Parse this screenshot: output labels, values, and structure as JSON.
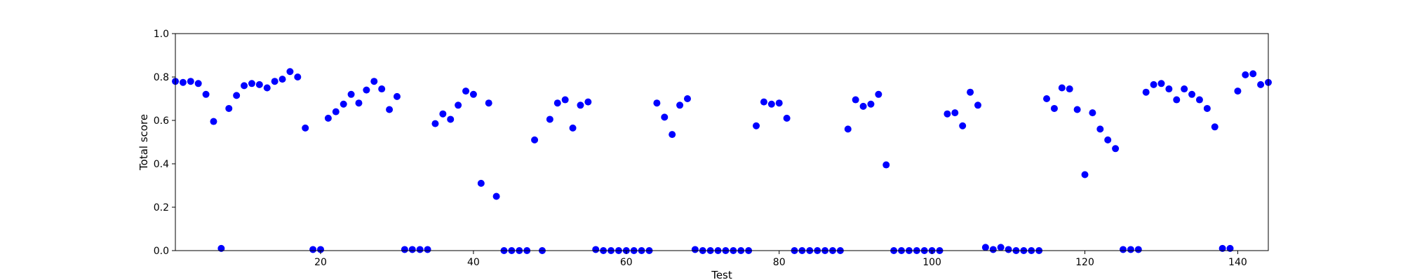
{
  "chart_data": {
    "type": "scatter",
    "title": "",
    "xlabel": "Test",
    "ylabel": "Total score",
    "xlim": [
      1,
      144
    ],
    "ylim": [
      0.0,
      1.0
    ],
    "x_ticks": [
      20,
      40,
      60,
      80,
      100,
      120,
      140
    ],
    "y_ticks": [
      0.0,
      0.2,
      0.4,
      0.6,
      0.8,
      1.0
    ],
    "y_tick_format": 1,
    "grid": false,
    "marker_color": "#0000ff",
    "x": [
      1,
      2,
      3,
      4,
      5,
      6,
      7,
      8,
      9,
      10,
      11,
      12,
      13,
      14,
      15,
      16,
      17,
      18,
      19,
      20,
      21,
      22,
      23,
      24,
      25,
      26,
      27,
      28,
      29,
      30,
      31,
      32,
      33,
      34,
      35,
      36,
      37,
      38,
      39,
      40,
      41,
      42,
      43,
      44,
      45,
      46,
      47,
      48,
      49,
      50,
      51,
      52,
      53,
      54,
      55,
      56,
      57,
      58,
      59,
      60,
      61,
      62,
      63,
      64,
      65,
      66,
      67,
      68,
      69,
      70,
      71,
      72,
      73,
      74,
      75,
      76,
      77,
      78,
      79,
      80,
      81,
      82,
      83,
      84,
      85,
      86,
      87,
      88,
      89,
      90,
      91,
      92,
      93,
      94,
      95,
      96,
      97,
      98,
      99,
      100,
      101,
      102,
      103,
      104,
      105,
      106,
      107,
      108,
      109,
      110,
      111,
      112,
      113,
      114,
      115,
      116,
      117,
      118,
      119,
      120,
      121,
      122,
      123,
      124,
      125,
      126,
      127,
      128,
      129,
      130,
      131,
      132,
      133,
      134,
      135,
      136,
      137,
      138,
      139,
      140,
      141,
      142,
      143,
      144
    ],
    "y": [
      0.78,
      0.775,
      0.78,
      0.77,
      0.72,
      0.595,
      0.01,
      0.655,
      0.715,
      0.76,
      0.77,
      0.765,
      0.75,
      0.78,
      0.79,
      0.825,
      0.8,
      0.565,
      0.005,
      0.005,
      0.61,
      0.64,
      0.675,
      0.72,
      0.68,
      0.74,
      0.78,
      0.745,
      0.65,
      0.71,
      0.005,
      0.005,
      0.005,
      0.005,
      0.585,
      0.63,
      0.605,
      0.67,
      0.735,
      0.72,
      0.31,
      0.68,
      0.25,
      0.0,
      0.0,
      0.0,
      0.0,
      0.51,
      0.0,
      0.605,
      0.68,
      0.695,
      0.565,
      0.67,
      0.685,
      0.005,
      0.0,
      0.0,
      0.0,
      0.0,
      0.0,
      0.0,
      0.0,
      0.68,
      0.615,
      0.535,
      0.67,
      0.7,
      0.005,
      0.0,
      0.0,
      0.0,
      0.0,
      0.0,
      0.0,
      0.0,
      0.575,
      0.685,
      0.675,
      0.68,
      0.61,
      0.0,
      0.0,
      0.0,
      0.0,
      0.0,
      0.0,
      0.0,
      0.56,
      0.695,
      0.665,
      0.675,
      0.72,
      0.395,
      0.0,
      0.0,
      0.0,
      0.0,
      0.0,
      0.0,
      0.0,
      0.63,
      0.635,
      0.575,
      0.73,
      0.67,
      0.015,
      0.005,
      0.015,
      0.005,
      0.0,
      0.0,
      0.0,
      0.0,
      0.7,
      0.655,
      0.75,
      0.745,
      0.65,
      0.35,
      0.635,
      0.56,
      0.51,
      0.47,
      0.005,
      0.005,
      0.005,
      0.73,
      0.765,
      0.77,
      0.745,
      0.695,
      0.745,
      0.72,
      0.695,
      0.655,
      0.57,
      0.01,
      0.01,
      0.735,
      0.81,
      0.815,
      0.765,
      0.775
    ]
  }
}
